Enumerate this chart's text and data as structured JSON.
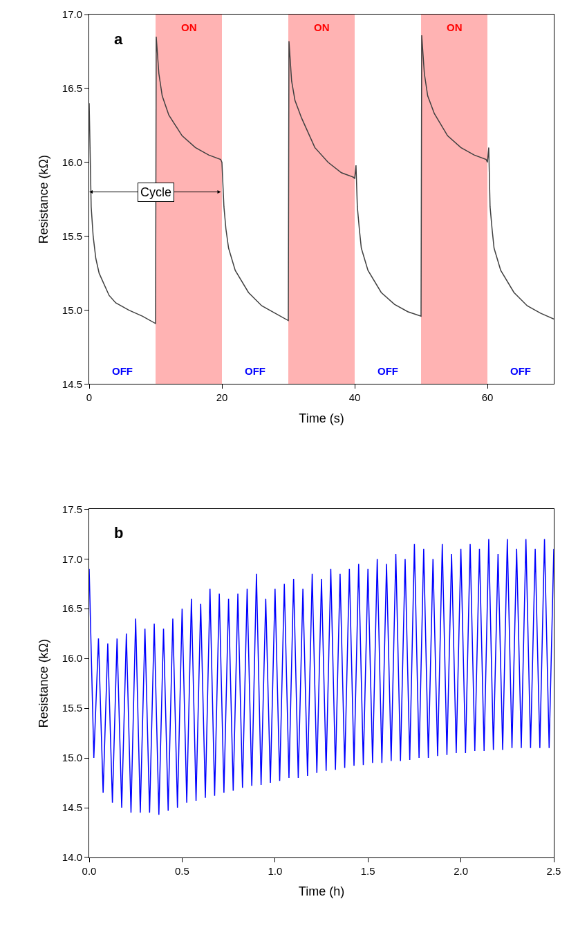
{
  "chart_data": [
    {
      "type": "line",
      "xlabel": "Time (s)",
      "ylabel": "Resistance (kΩ)",
      "xlim": [
        0,
        70
      ],
      "xticks": [
        0,
        20,
        40,
        60
      ],
      "ylim": [
        14.5,
        17
      ],
      "yticks": [
        14.5,
        {
          "value": 15,
          "label": "15.0"
        },
        15.5,
        {
          "value": 16,
          "label": "16.0"
        },
        16.5,
        {
          "value": 17,
          "label": "17.0"
        }
      ],
      "grid": false,
      "marker": "none",
      "line_style": "solid",
      "series": [
        {
          "color": "#404040",
          "x": [
            0,
            0.3,
            0.6,
            1,
            1.5,
            2,
            3,
            4,
            6,
            8,
            10,
            10.1,
            10.5,
            11,
            12,
            14,
            16,
            18,
            19.8,
            20,
            20.3,
            20.6,
            21,
            22,
            24,
            26,
            28,
            30,
            30.1,
            30.5,
            31,
            32,
            34,
            36,
            38,
            39.8,
            40,
            40.2,
            40.4,
            40.7,
            41,
            42,
            44,
            46,
            48,
            50,
            50.1,
            50.5,
            51,
            52,
            54,
            56,
            58,
            59.8,
            60,
            60.2,
            60.4,
            60.7,
            61,
            62,
            64,
            66,
            68,
            70
          ],
          "values": [
            16.4,
            15.7,
            15.5,
            15.35,
            15.25,
            15.2,
            15.1,
            15.05,
            15.0,
            14.96,
            14.91,
            16.85,
            16.6,
            16.45,
            16.32,
            16.18,
            16.1,
            16.05,
            16.02,
            16.0,
            15.7,
            15.55,
            15.42,
            15.27,
            15.12,
            15.03,
            14.98,
            14.93,
            16.82,
            16.55,
            16.42,
            16.3,
            16.1,
            16.0,
            15.93,
            15.9,
            15.89,
            15.98,
            15.7,
            15.55,
            15.42,
            15.27,
            15.12,
            15.04,
            14.99,
            14.96,
            16.86,
            16.6,
            16.45,
            16.33,
            16.18,
            16.1,
            16.05,
            16.02,
            16.0,
            16.1,
            15.7,
            15.55,
            15.42,
            15.27,
            15.12,
            15.03,
            14.98,
            14.94
          ]
        }
      ],
      "bands": [
        {
          "axis": "x",
          "from": 10,
          "to": 20,
          "label": "ON",
          "color": "#ffb3b3"
        },
        {
          "axis": "x",
          "from": 30,
          "to": 40,
          "label": "ON",
          "color": "#ffb3b3"
        },
        {
          "axis": "x",
          "from": 50,
          "to": 60,
          "label": "ON",
          "color": "#ffb3b3"
        }
      ],
      "annotations": [
        "a",
        {
          "text": "Cycle",
          "x": 10,
          "y": 15.8
        },
        "OFF",
        "OFF",
        "OFF",
        "OFF"
      ]
    },
    {
      "type": "line",
      "xlabel": "Time (h)",
      "ylabel": "Resistance (kΩ)",
      "xlim": [
        0,
        2.5
      ],
      "xticks": [
        {
          "value": 0,
          "label": "0.0"
        },
        0.5,
        {
          "value": 1,
          "label": "1.0"
        },
        1.5,
        {
          "value": 2,
          "label": "2.0"
        },
        2.5
      ],
      "ylim": [
        14,
        17.5
      ],
      "yticks": [
        {
          "value": 14,
          "label": "14.0"
        },
        14.5,
        {
          "value": 15,
          "label": "15.0"
        },
        15.5,
        {
          "value": 16,
          "label": "16.0"
        },
        16.5,
        {
          "value": 17,
          "label": "17.0"
        },
        17.5
      ],
      "grid": false,
      "marker": "none",
      "line_style": "solid",
      "series": [
        {
          "color": "#0000ff",
          "x": [
            0,
            0.025,
            0.05,
            0.075,
            0.1,
            0.125,
            0.15,
            0.175,
            0.2,
            0.225,
            0.25,
            0.275,
            0.3,
            0.325,
            0.35,
            0.375,
            0.4,
            0.425,
            0.45,
            0.475,
            0.5,
            0.525,
            0.55,
            0.575,
            0.6,
            0.625,
            0.65,
            0.675,
            0.7,
            0.725,
            0.75,
            0.775,
            0.8,
            0.825,
            0.85,
            0.875,
            0.9,
            0.925,
            0.95,
            0.975,
            1.0,
            1.025,
            1.05,
            1.075,
            1.1,
            1.125,
            1.15,
            1.175,
            1.2,
            1.225,
            1.25,
            1.275,
            1.3,
            1.325,
            1.35,
            1.375,
            1.4,
            1.425,
            1.45,
            1.475,
            1.5,
            1.525,
            1.55,
            1.575,
            1.6,
            1.625,
            1.65,
            1.675,
            1.7,
            1.725,
            1.75,
            1.775,
            1.8,
            1.825,
            1.85,
            1.875,
            1.9,
            1.925,
            1.95,
            1.975,
            2.0,
            2.025,
            2.05,
            2.075,
            2.1,
            2.125,
            2.15,
            2.175,
            2.2,
            2.225,
            2.25,
            2.275,
            2.3,
            2.325,
            2.35,
            2.375,
            2.4,
            2.425,
            2.45,
            2.475,
            2.5
          ],
          "values": [
            16.9,
            15.0,
            16.2,
            14.65,
            16.15,
            14.55,
            16.2,
            14.5,
            16.25,
            14.45,
            16.4,
            14.45,
            16.3,
            14.45,
            16.35,
            14.43,
            16.3,
            14.47,
            16.4,
            14.5,
            16.5,
            14.55,
            16.6,
            14.57,
            16.55,
            14.6,
            16.7,
            14.62,
            16.65,
            14.65,
            16.6,
            14.67,
            16.65,
            14.7,
            16.7,
            14.72,
            16.85,
            14.73,
            16.6,
            14.75,
            16.7,
            14.77,
            16.75,
            14.8,
            16.8,
            14.8,
            16.7,
            14.82,
            16.85,
            14.85,
            16.8,
            14.87,
            16.9,
            14.88,
            16.85,
            14.9,
            16.9,
            14.92,
            16.95,
            14.93,
            16.9,
            14.95,
            17.0,
            14.95,
            16.95,
            14.97,
            17.05,
            14.97,
            17.0,
            14.98,
            17.15,
            15.0,
            17.1,
            15.0,
            17.0,
            15.02,
            17.15,
            15.03,
            17.05,
            15.05,
            17.1,
            15.05,
            17.15,
            15.07,
            17.1,
            15.07,
            17.2,
            15.08,
            17.05,
            15.08,
            17.2,
            15.1,
            17.1,
            15.1,
            17.2,
            15.1,
            17.1,
            15.1,
            17.2,
            15.1,
            17.1
          ]
        }
      ],
      "annotations": [
        "b"
      ]
    }
  ]
}
